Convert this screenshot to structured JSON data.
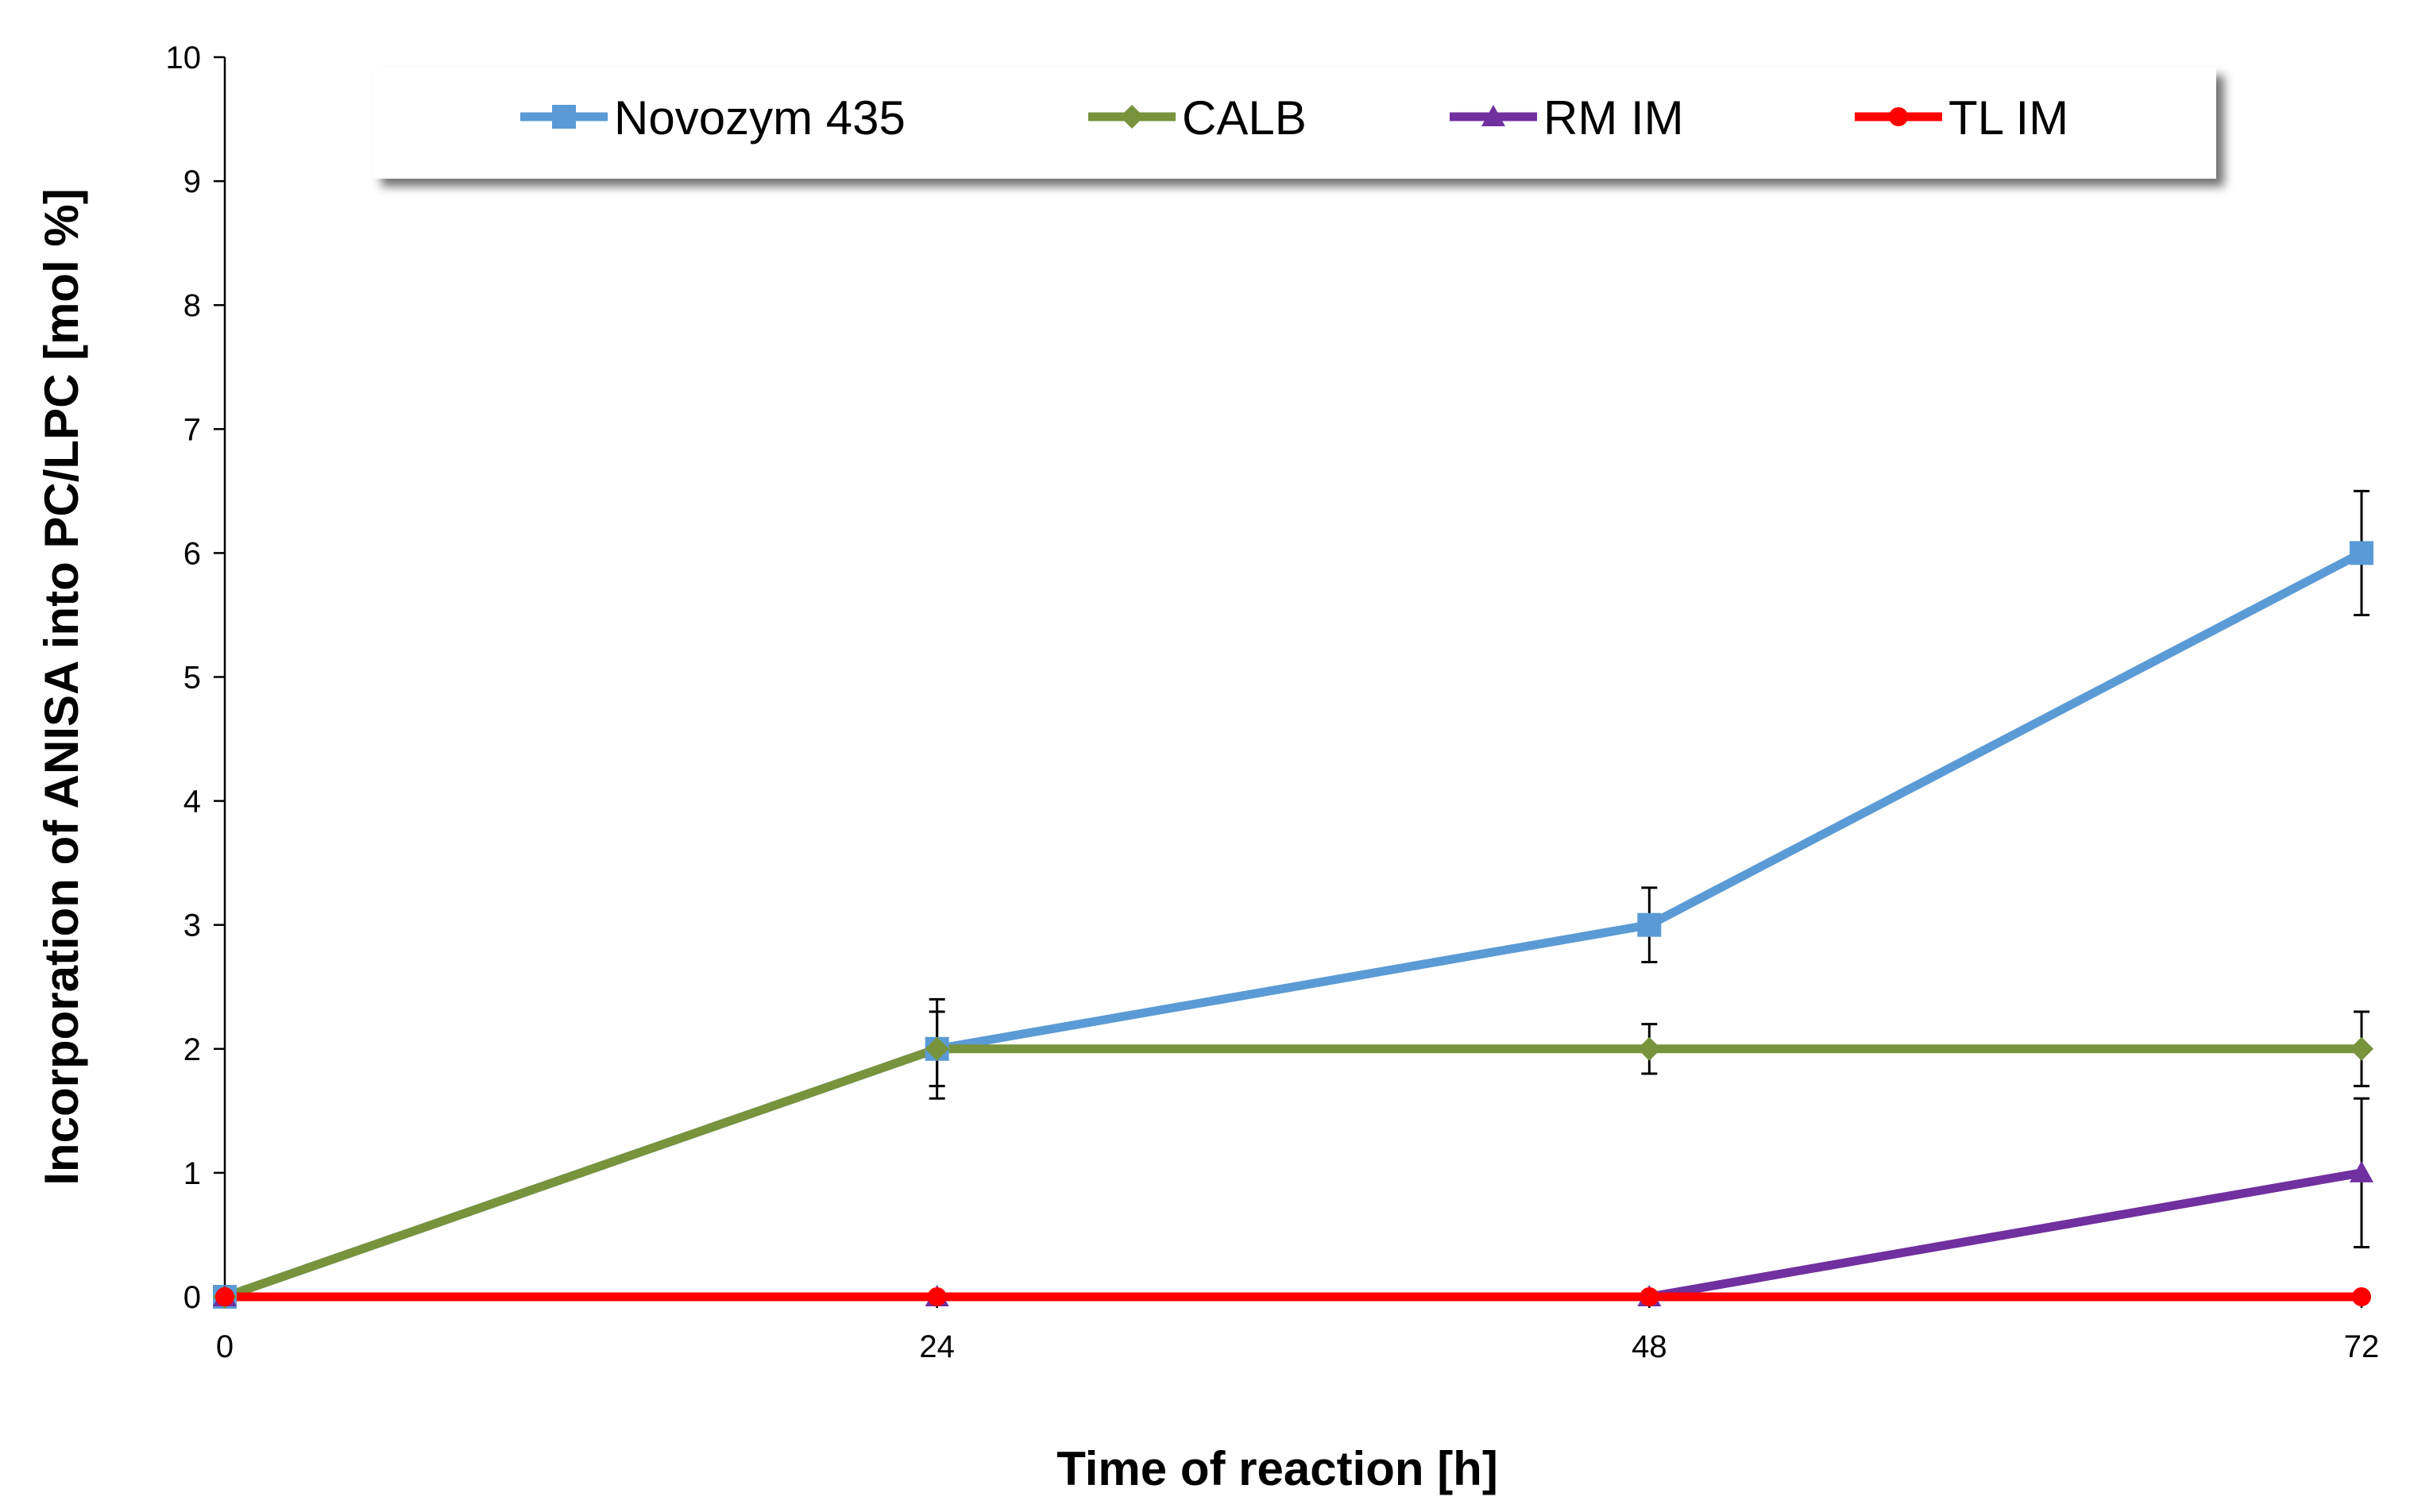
{
  "chart_data": {
    "type": "line",
    "title": "",
    "xlabel": "Time of reaction [h]",
    "ylabel": "Incorporation of ANISA  into PC/LPC  [mol %]",
    "x": [
      0,
      24,
      48,
      72
    ],
    "x_tick_labels": [
      "0",
      "24",
      "48",
      "72"
    ],
    "ylim": [
      0,
      10
    ],
    "y_ticks": [
      0,
      1,
      2,
      3,
      4,
      5,
      6,
      7,
      8,
      9,
      10
    ],
    "y_tick_labels": [
      "0",
      "1",
      "2",
      "3",
      "4",
      "5",
      "6",
      "7",
      "8",
      "9",
      "10"
    ],
    "grid": false,
    "legend_position": "top",
    "series": [
      {
        "name": "Novozym 435",
        "color": "#5b9bd5",
        "marker": "square",
        "values": [
          0,
          2,
          3,
          6
        ],
        "errors": [
          null,
          0.3,
          0.3,
          0.5
        ]
      },
      {
        "name": "CALB",
        "color": "#77933c",
        "marker": "diamond",
        "values": [
          0,
          2,
          2,
          2
        ],
        "errors": [
          null,
          0.4,
          0.2,
          0.3
        ]
      },
      {
        "name": "RM IM",
        "color": "#7030a0",
        "marker": "triangle",
        "values": [
          0,
          0,
          0,
          1
        ],
        "errors": [
          null,
          null,
          null,
          0.6
        ]
      },
      {
        "name": "TL IM",
        "color": "#ff0000",
        "marker": "circle",
        "values": [
          0,
          0,
          0,
          0
        ],
        "errors": [
          null,
          null,
          null,
          null
        ]
      }
    ]
  }
}
